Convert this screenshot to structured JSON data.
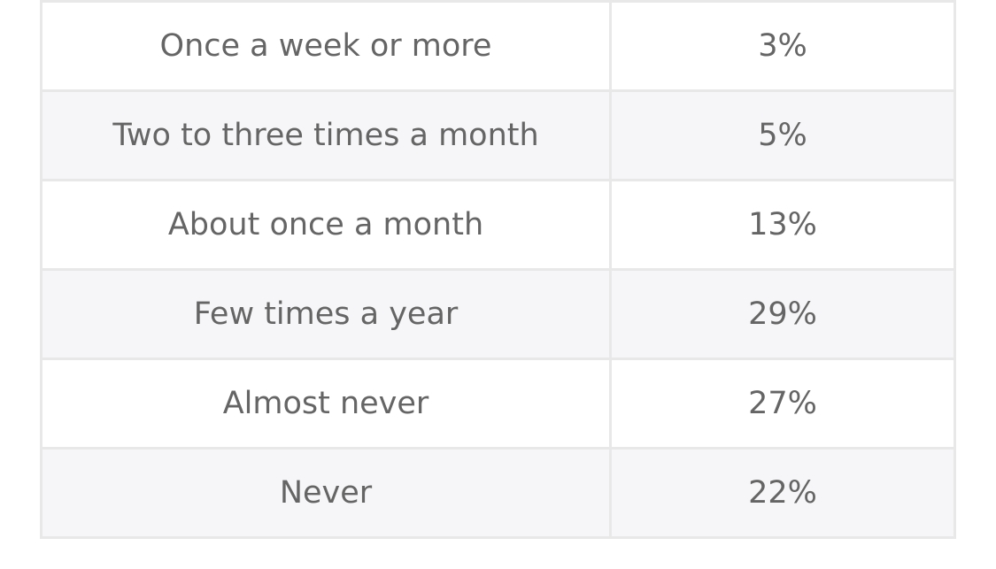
{
  "table": {
    "rows": [
      {
        "frequency": "Once a week or more",
        "percent": "3%"
      },
      {
        "frequency": "Two to three times a month",
        "percent": "5%"
      },
      {
        "frequency": "About once a month",
        "percent": "13%"
      },
      {
        "frequency": "Few times a year",
        "percent": "29%"
      },
      {
        "frequency": "Almost never",
        "percent": "27%"
      },
      {
        "frequency": "Never",
        "percent": "22%"
      }
    ]
  }
}
